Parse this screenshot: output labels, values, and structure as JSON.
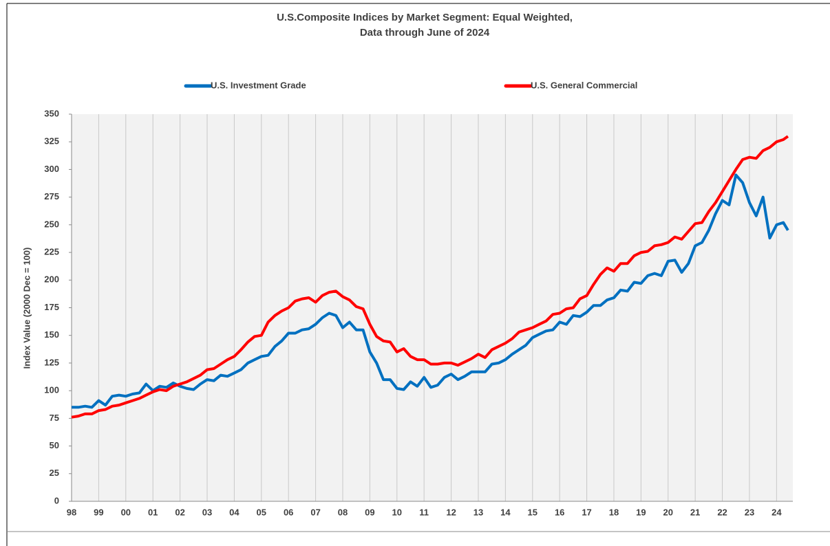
{
  "chart_data": {
    "type": "line",
    "title": "U.S.Composite Indices by Market Segment: Equal Weighted,",
    "subtitle": "Data through June of 2024",
    "y_label": "Index Value (2000 Dec = 100)",
    "grid": "x",
    "xlim": [
      1998,
      2024.6
    ],
    "ylim": [
      0,
      350
    ],
    "yticks": [
      0,
      25,
      50,
      75,
      100,
      125,
      150,
      175,
      200,
      225,
      250,
      275,
      300,
      325,
      350
    ],
    "xticks": [
      {
        "value": 1998,
        "label": "98"
      },
      {
        "value": 1999,
        "label": "99"
      },
      {
        "value": 2000,
        "label": "00"
      },
      {
        "value": 2001,
        "label": "01"
      },
      {
        "value": 2002,
        "label": "02"
      },
      {
        "value": 2003,
        "label": "03"
      },
      {
        "value": 2004,
        "label": "04"
      },
      {
        "value": 2005,
        "label": "05"
      },
      {
        "value": 2006,
        "label": "06"
      },
      {
        "value": 2007,
        "label": "07"
      },
      {
        "value": 2008,
        "label": "08"
      },
      {
        "value": 2009,
        "label": "09"
      },
      {
        "value": 2010,
        "label": "10"
      },
      {
        "value": 2011,
        "label": "11"
      },
      {
        "value": 2012,
        "label": "12"
      },
      {
        "value": 2013,
        "label": "13"
      },
      {
        "value": 2014,
        "label": "14"
      },
      {
        "value": 2015,
        "label": "15"
      },
      {
        "value": 2016,
        "label": "16"
      },
      {
        "value": 2017,
        "label": "17"
      },
      {
        "value": 2018,
        "label": "18"
      },
      {
        "value": 2019,
        "label": "19"
      },
      {
        "value": 2020,
        "label": "20"
      },
      {
        "value": 2021,
        "label": "21"
      },
      {
        "value": 2022,
        "label": "22"
      },
      {
        "value": 2023,
        "label": "23"
      },
      {
        "value": 2024,
        "label": "24"
      }
    ],
    "x": [
      1998,
      1998.25,
      1998.5,
      1998.75,
      1999,
      1999.25,
      1999.5,
      1999.75,
      2000,
      2000.25,
      2000.5,
      2000.75,
      2001,
      2001.25,
      2001.5,
      2001.75,
      2002,
      2002.25,
      2002.5,
      2002.75,
      2003,
      2003.25,
      2003.5,
      2003.75,
      2004,
      2004.25,
      2004.5,
      2004.75,
      2005,
      2005.25,
      2005.5,
      2005.75,
      2006,
      2006.25,
      2006.5,
      2006.75,
      2007,
      2007.25,
      2007.5,
      2007.75,
      2008,
      2008.25,
      2008.5,
      2008.75,
      2009,
      2009.25,
      2009.5,
      2009.75,
      2010,
      2010.25,
      2010.5,
      2010.75,
      2011,
      2011.25,
      2011.5,
      2011.75,
      2012,
      2012.25,
      2012.5,
      2012.75,
      2013,
      2013.25,
      2013.5,
      2013.75,
      2014,
      2014.25,
      2014.5,
      2014.75,
      2015,
      2015.25,
      2015.5,
      2015.75,
      2016,
      2016.25,
      2016.5,
      2016.75,
      2017,
      2017.25,
      2017.5,
      2017.75,
      2018,
      2018.25,
      2018.5,
      2018.75,
      2019,
      2019.25,
      2019.5,
      2019.75,
      2020,
      2020.25,
      2020.5,
      2020.75,
      2021,
      2021.25,
      2021.5,
      2021.75,
      2022,
      2022.25,
      2022.5,
      2022.75,
      2023,
      2023.25,
      2023.5,
      2023.75,
      2024,
      2024.25,
      2024.42
    ],
    "series": [
      {
        "name": "U.S. Investment Grade",
        "color": "#0070c0",
        "values": [
          85,
          85,
          86,
          85,
          91,
          87,
          95,
          96,
          95,
          97,
          98,
          106,
          100,
          104,
          103,
          107,
          104,
          102,
          101,
          106,
          110,
          109,
          114,
          113,
          116,
          119,
          125,
          128,
          131,
          132,
          140,
          145,
          152,
          152,
          155,
          156,
          160,
          166,
          170,
          168,
          157,
          162,
          155,
          155,
          135,
          125,
          110,
          110,
          102,
          101,
          108,
          104,
          112,
          103,
          105,
          112,
          115,
          110,
          113,
          117,
          117,
          117,
          124,
          125,
          128,
          133,
          137,
          141,
          148,
          151,
          154,
          155,
          162,
          160,
          168,
          167,
          171,
          177,
          177,
          182,
          184,
          191,
          190,
          198,
          197,
          204,
          206,
          204,
          217,
          218,
          207,
          215,
          231,
          234,
          245,
          260,
          272,
          268,
          295,
          288,
          270,
          258,
          275,
          238,
          250,
          252,
          245
        ]
      },
      {
        "name": "U.S. General Commercial",
        "color": "#ff0000",
        "values": [
          76,
          77,
          79,
          79,
          82,
          83,
          86,
          87,
          89,
          91,
          93,
          96,
          99,
          101,
          100,
          104,
          106,
          108,
          111,
          114,
          119,
          120,
          124,
          128,
          131,
          137,
          144,
          149,
          150,
          162,
          168,
          172,
          175,
          181,
          183,
          184,
          180,
          186,
          189,
          190,
          185,
          182,
          176,
          174,
          160,
          149,
          145,
          144,
          135,
          138,
          131,
          128,
          128,
          124,
          124,
          125,
          125,
          123,
          126,
          129,
          133,
          130,
          137,
          140,
          143,
          147,
          153,
          155,
          157,
          160,
          163,
          169,
          170,
          174,
          175,
          183,
          186,
          196,
          205,
          211,
          208,
          215,
          215,
          222,
          225,
          226,
          231,
          232,
          234,
          239,
          237,
          244,
          251,
          252,
          262,
          270,
          280,
          290,
          300,
          309,
          311,
          310,
          317,
          320,
          325,
          327,
          330
        ]
      }
    ]
  }
}
